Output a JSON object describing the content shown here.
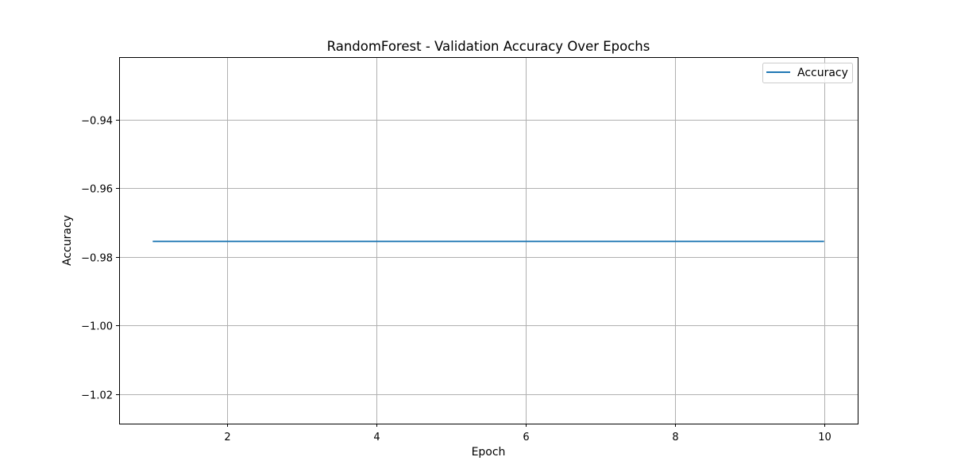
{
  "chart_data": {
    "type": "line",
    "title": "RandomForest - Validation Accuracy Over Epochs",
    "xlabel": "Epoch",
    "ylabel": "Accuracy",
    "xlim": [
      0.55,
      10.45
    ],
    "ylim": [
      -1.0286,
      -0.9218
    ],
    "xticks": [
      2,
      4,
      6,
      8,
      10
    ],
    "yticks": [
      -0.94,
      -0.96,
      -0.98,
      -1.0,
      -1.02
    ],
    "ytick_labels": [
      "−0.94",
      "−0.96",
      "−0.98",
      "−1.00",
      "−1.02"
    ],
    "grid": true,
    "legend_position": "top-right",
    "series": [
      {
        "name": "Accuracy",
        "color": "#1f77b4",
        "x": [
          1,
          2,
          3,
          4,
          5,
          6,
          7,
          8,
          9,
          10
        ],
        "y": [
          -0.9755,
          -0.9755,
          -0.9755,
          -0.9755,
          -0.9755,
          -0.9755,
          -0.9755,
          -0.9755,
          -0.9755,
          -0.9755
        ]
      }
    ]
  }
}
